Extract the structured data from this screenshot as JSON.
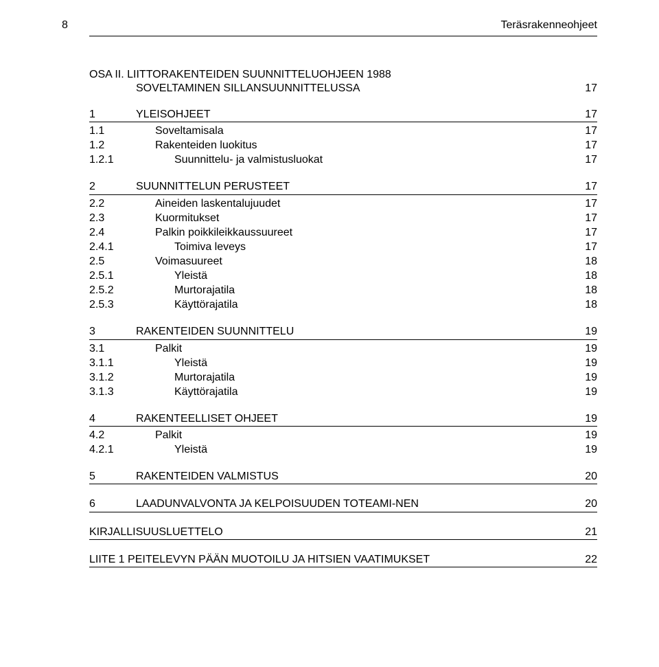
{
  "header": {
    "page_number": "8",
    "doc_title": "Teräsrakenneohjeet"
  },
  "part": {
    "line1": "OSA II. LIITTORAKENTEIDEN SUUNNITTELUOHJEEN 1988",
    "line2": "SOVELTAMINEN SILLANSUUNNITTELUSSA",
    "page": "17"
  },
  "sections": [
    {
      "rule": true,
      "rows": [
        {
          "num": "1",
          "label": "YLEISOHJEET",
          "page": "17",
          "indent": 0
        },
        {
          "num": "1.1",
          "label": "Soveltamisala",
          "page": "17",
          "indent": 1
        },
        {
          "num": "1.2",
          "label": "Rakenteiden luokitus",
          "page": "17",
          "indent": 1
        },
        {
          "num": "1.2.1",
          "label": "Suunnittelu- ja valmistusluokat",
          "page": "17",
          "indent": 2
        }
      ]
    },
    {
      "rule": true,
      "rows": [
        {
          "num": "2",
          "label": "SUUNNITTELUN PERUSTEET",
          "page": "17",
          "indent": 0
        },
        {
          "num": "2.2",
          "label": "Aineiden laskentalujuudet",
          "page": "17",
          "indent": 1
        },
        {
          "num": "2.3",
          "label": "Kuormitukset",
          "page": "17",
          "indent": 1
        },
        {
          "num": "2.4",
          "label": "Palkin poikkileikkaussuureet",
          "page": "17",
          "indent": 1
        },
        {
          "num": "2.4.1",
          "label": "Toimiva leveys",
          "page": "17",
          "indent": 2
        },
        {
          "num": "2.5",
          "label": "Voimasuureet",
          "page": "18",
          "indent": 1
        },
        {
          "num": "2.5.1",
          "label": "Yleistä",
          "page": "18",
          "indent": 2
        },
        {
          "num": "2.5.2",
          "label": "Murtorajatila",
          "page": "18",
          "indent": 2
        },
        {
          "num": "2.5.3",
          "label": "Käyttörajatila",
          "page": "18",
          "indent": 2
        }
      ]
    },
    {
      "rule": true,
      "rows": [
        {
          "num": "3",
          "label": "RAKENTEIDEN SUUNNITTELU",
          "page": "19",
          "indent": 0
        },
        {
          "num": "3.1",
          "label": "Palkit",
          "page": "19",
          "indent": 1
        },
        {
          "num": "3.1.1",
          "label": "Yleistä",
          "page": "19",
          "indent": 2
        },
        {
          "num": "3.1.2",
          "label": "Murtorajatila",
          "page": "19",
          "indent": 2
        },
        {
          "num": "3.1.3",
          "label": "Käyttörajatila",
          "page": "19",
          "indent": 2
        }
      ]
    },
    {
      "rule": true,
      "rows": [
        {
          "num": "4",
          "label": "RAKENTEELLISET OHJEET",
          "page": "19",
          "indent": 0
        },
        {
          "num": "4.2",
          "label": "Palkit",
          "page": "19",
          "indent": 1
        },
        {
          "num": "4.2.1",
          "label": "Yleistä",
          "page": "19",
          "indent": 2
        }
      ]
    },
    {
      "rule": true,
      "rows": [
        {
          "num": "5",
          "label": "RAKENTEIDEN VALMISTUS",
          "page": "20",
          "indent": 0
        }
      ]
    },
    {
      "rule": true,
      "rows": [
        {
          "num": "6",
          "label": "LAADUNVALVONTA JA KELPOISUUDEN TOTEAMI-NEN",
          "page": "20",
          "indent": 0
        }
      ]
    },
    {
      "rule": true,
      "rows": [
        {
          "num": "",
          "label": "KIRJALLISUUSLUETTELO",
          "page": "21",
          "indent": 0
        }
      ]
    },
    {
      "rule": true,
      "rows": [
        {
          "num": "",
          "label": "LIITE 1 PEITELEVYN PÄÄN MUOTOILU JA HITSIEN VAATIMUKSET",
          "page": "22",
          "indent": 0
        }
      ]
    }
  ]
}
